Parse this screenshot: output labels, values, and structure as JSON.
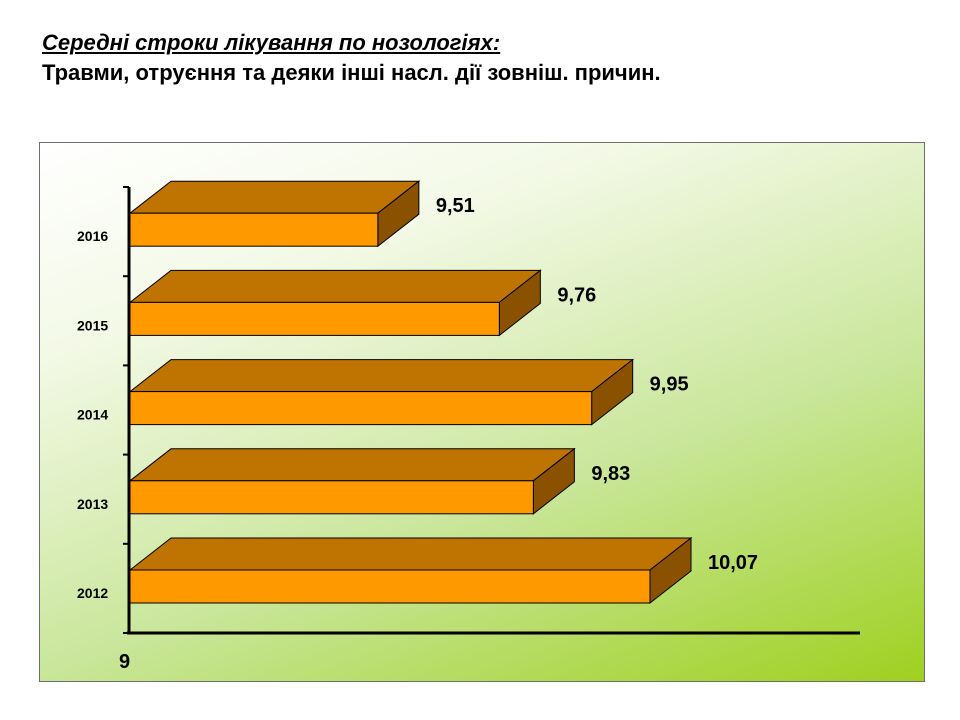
{
  "title": {
    "heading": "Середні строки лікування по нозологіях:",
    "subheading": "Травми, отруєння та деяки інші насл. дії зовніш. причин."
  },
  "colors": {
    "bar_front": "#ff9900",
    "bar_top": "#bf7300",
    "bar_side": "#8a5200",
    "bar_outline": "#000000",
    "axis": "#000000"
  },
  "chart_data": {
    "type": "bar",
    "orientation": "horizontal",
    "style": "3d",
    "categories": [
      "2012",
      "2013",
      "2014",
      "2015",
      "2016"
    ],
    "values": [
      10.07,
      9.83,
      9.95,
      9.76,
      9.51
    ],
    "value_labels": [
      "10,07",
      "9,83",
      "9,95",
      "9,76",
      "9,51"
    ],
    "x_axis_min_label": "9",
    "xlim": [
      9,
      10.5
    ],
    "legend": "none",
    "grid": false
  }
}
